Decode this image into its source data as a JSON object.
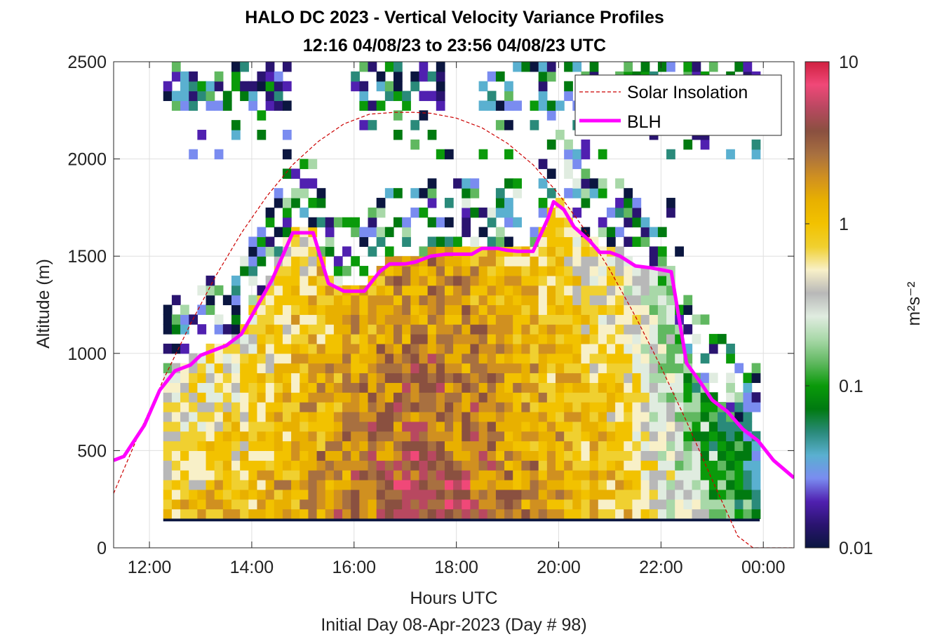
{
  "chart_data": {
    "type": "heatmap",
    "title": "HALO DC 2023 - Vertical Velocity Variance Profiles",
    "subtitle": "12:16 04/08/23 to 23:56 04/08/23  UTC",
    "xlabel": "Hours UTC",
    "xlabel2": "Initial Day 08-Apr-2023 (Day # 98)",
    "ylabel": "Altitude (m)",
    "xlim": [
      11.3,
      24.6
    ],
    "ylim": [
      0,
      2500
    ],
    "x_ticks": [
      12,
      14,
      16,
      18,
      20,
      22,
      24
    ],
    "x_tick_labels": [
      "12:00",
      "14:00",
      "16:00",
      "18:00",
      "20:00",
      "22:00",
      "00:00"
    ],
    "y_ticks": [
      0,
      500,
      1000,
      1500,
      2000,
      2500
    ],
    "y_tick_labels": [
      "0",
      "500",
      "1000",
      "1500",
      "2000",
      "2500"
    ],
    "grid": true,
    "legend_placement": "top-right",
    "colorbar": {
      "label": "m²s⁻²",
      "scale": "log",
      "range": [
        0.01,
        10
      ],
      "tick_values": [
        0.01,
        0.1,
        1,
        10
      ],
      "tick_labels": [
        "0.01",
        "0.1",
        "1",
        "10"
      ],
      "colors": [
        "#0b1640",
        "#2a1470",
        "#5020b0",
        "#7a8cf0",
        "#5ab0d0",
        "#2a8a7a",
        "#007a10",
        "#0a9a0a",
        "#60b860",
        "#a8d8a8",
        "#e0ece0",
        "#b8b8b8",
        "#f8f0c8",
        "#f0d030",
        "#f2c200",
        "#e8b000",
        "#d09020",
        "#a87040",
        "#8a5040",
        "#b84860",
        "#f04878",
        "#d02040"
      ]
    },
    "time_range": [
      12.27,
      23.93
    ],
    "bin_hours": 0.1667,
    "bin_meters": 50,
    "noise_floor_row_m": [
      100,
      150
    ],
    "series": [
      {
        "name": "Solar Insolation",
        "type": "line",
        "style": "dashed",
        "color": "#cc0000",
        "x": [
          11.3,
          11.8,
          12.3,
          12.8,
          13.3,
          13.8,
          14.3,
          14.8,
          15.3,
          15.8,
          16.3,
          16.8,
          17.15,
          17.5,
          18.0,
          18.5,
          19.0,
          19.5,
          20.0,
          20.5,
          21.0,
          21.5,
          22.0,
          22.5,
          23.0,
          23.5,
          23.8,
          24.0,
          24.6
        ],
        "y": [
          280,
          590,
          880,
          1150,
          1400,
          1620,
          1810,
          1970,
          2090,
          2180,
          2230,
          2240,
          2240,
          2235,
          2210,
          2160,
          2080,
          1970,
          1820,
          1640,
          1430,
          1190,
          930,
          650,
          350,
          60,
          0,
          0,
          0
        ]
      },
      {
        "name": "BLH",
        "type": "line",
        "color": "#ff00ff",
        "x": [
          11.3,
          11.5,
          11.9,
          12.2,
          12.5,
          12.8,
          13.0,
          13.2,
          13.5,
          13.8,
          14.1,
          14.4,
          14.6,
          14.8,
          15.0,
          15.2,
          15.5,
          15.8,
          16.0,
          16.2,
          16.5,
          16.7,
          17.0,
          17.2,
          17.5,
          17.8,
          18.0,
          18.3,
          18.5,
          18.8,
          19.0,
          19.2,
          19.5,
          19.8,
          19.9,
          20.1,
          20.3,
          20.6,
          20.8,
          21.0,
          21.2,
          21.5,
          21.8,
          22.0,
          22.2,
          22.5,
          22.8,
          23.0,
          23.3,
          23.6,
          23.9,
          24.2,
          24.6
        ],
        "y": [
          450,
          470,
          630,
          810,
          910,
          940,
          990,
          1010,
          1040,
          1100,
          1240,
          1380,
          1500,
          1620,
          1620,
          1620,
          1360,
          1320,
          1320,
          1320,
          1420,
          1460,
          1460,
          1470,
          1500,
          1510,
          1510,
          1510,
          1540,
          1540,
          1530,
          1525,
          1525,
          1700,
          1780,
          1740,
          1650,
          1580,
          1520,
          1520,
          1500,
          1450,
          1440,
          1430,
          1420,
          950,
          840,
          760,
          700,
          610,
          550,
          450,
          360
        ]
      }
    ]
  }
}
